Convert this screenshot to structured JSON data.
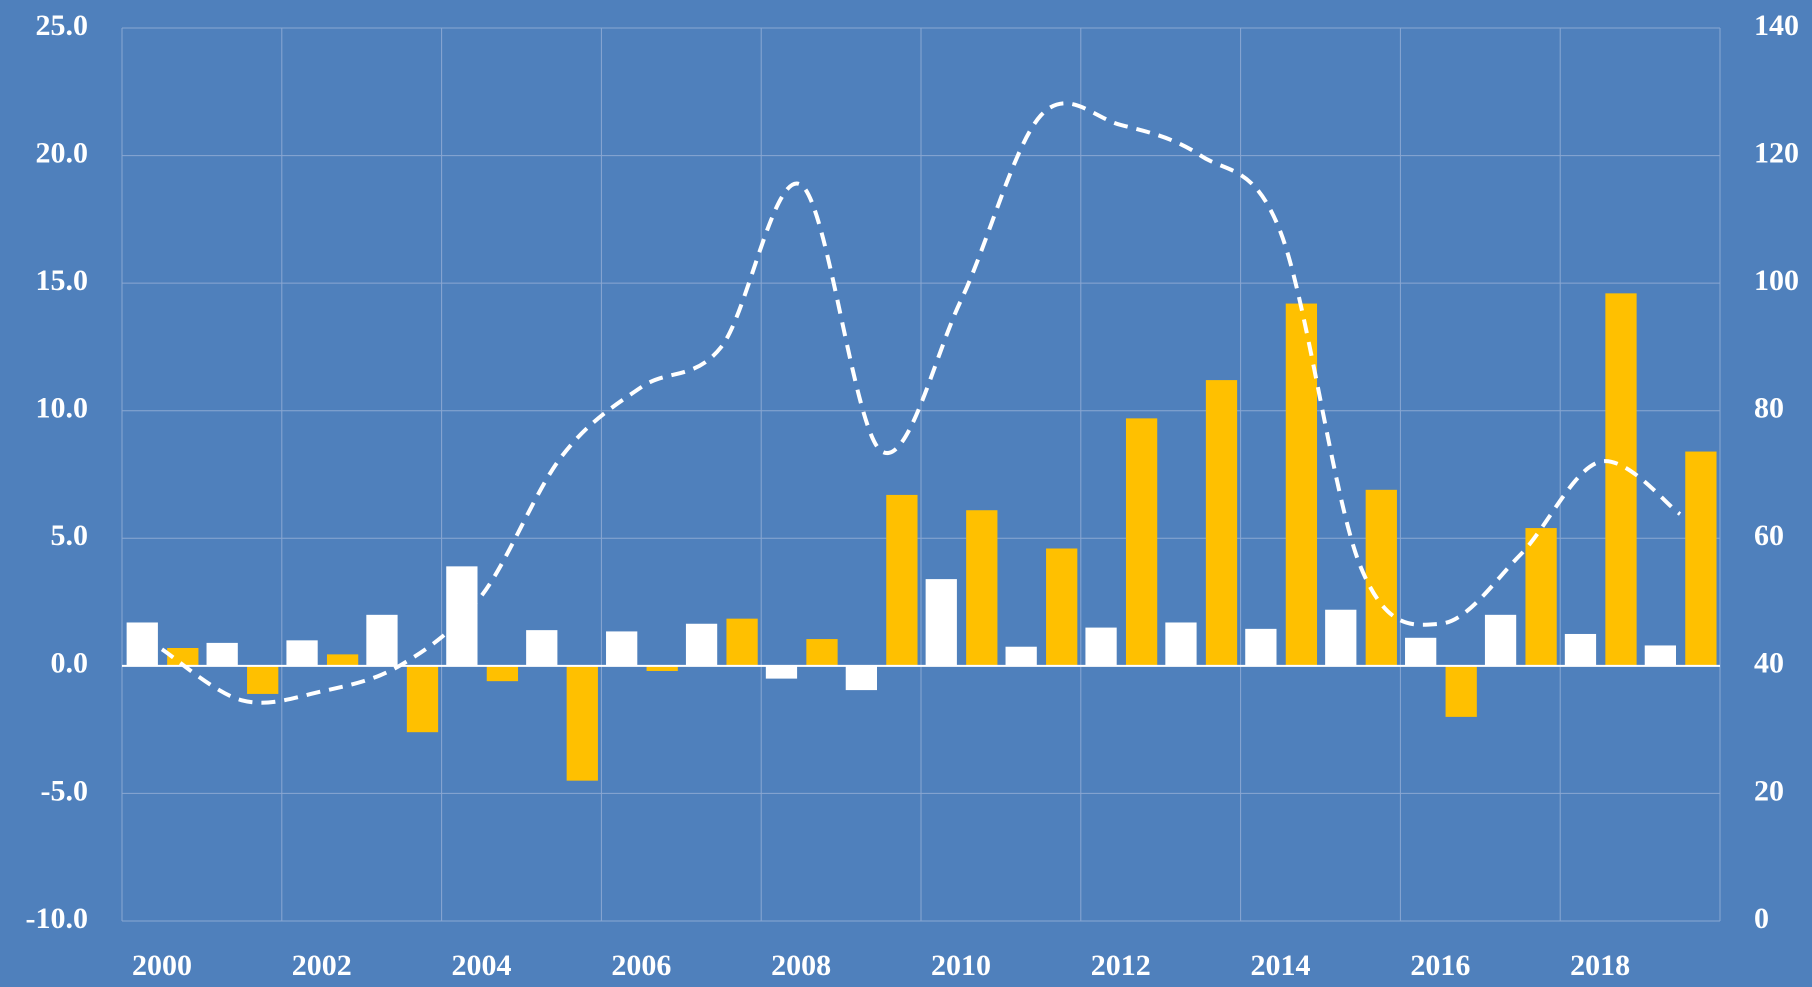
{
  "chart_data": {
    "type": "bar",
    "categories": [
      "2000",
      null,
      "2002",
      null,
      "2004",
      null,
      "2006",
      null,
      "2008",
      null,
      "2010",
      null,
      "2012",
      null,
      "2014",
      null,
      "2016",
      null,
      "2018",
      null
    ],
    "series": [
      {
        "color": "#ffffff",
        "values": [
          1.7,
          0.9,
          1.0,
          2.0,
          3.9,
          1.4,
          1.35,
          1.65,
          -0.5,
          -0.95,
          3.4,
          0.75,
          1.5,
          1.7,
          1.45,
          2.2,
          1.1,
          2.0,
          1.25,
          0.8
        ]
      },
      {
        "color": "#ffc000",
        "values": [
          0.7,
          -1.1,
          0.45,
          -2.6,
          -0.6,
          -4.5,
          -0.2,
          1.85,
          1.05,
          6.7,
          6.1,
          4.6,
          9.7,
          11.2,
          14.2,
          6.9,
          -2.0,
          5.4,
          14.6,
          8.4
        ]
      },
      {
        "type": "line",
        "axis": "y2",
        "color": "#ffffff",
        "dashed": true,
        "smooth": true,
        "values": [
          42.6,
          34.6,
          36,
          40.2,
          51,
          72.8,
          83.7,
          90,
          115.4,
          73.7,
          97.3,
          126.3,
          124.8,
          120,
          108,
          55.6,
          46.6,
          57.4,
          72,
          63.8
        ]
      }
    ],
    "ylim": [
      -10,
      25
    ],
    "yticks": [
      {
        "value": -10,
        "label": "-10.0"
      },
      {
        "value": -5,
        "label": "-5.0"
      },
      {
        "value": 0,
        "label": "0.0"
      },
      {
        "value": 5,
        "label": "5.0"
      },
      {
        "value": 10,
        "label": "10.0"
      },
      {
        "value": 15,
        "label": "15.0"
      },
      {
        "value": 20,
        "label": "20.0"
      },
      {
        "value": 25,
        "label": "25.0"
      }
    ],
    "y2lim": [
      0,
      140
    ],
    "y2ticks": [
      0,
      20,
      40,
      60,
      80,
      100,
      120,
      140
    ],
    "grid": true
  }
}
